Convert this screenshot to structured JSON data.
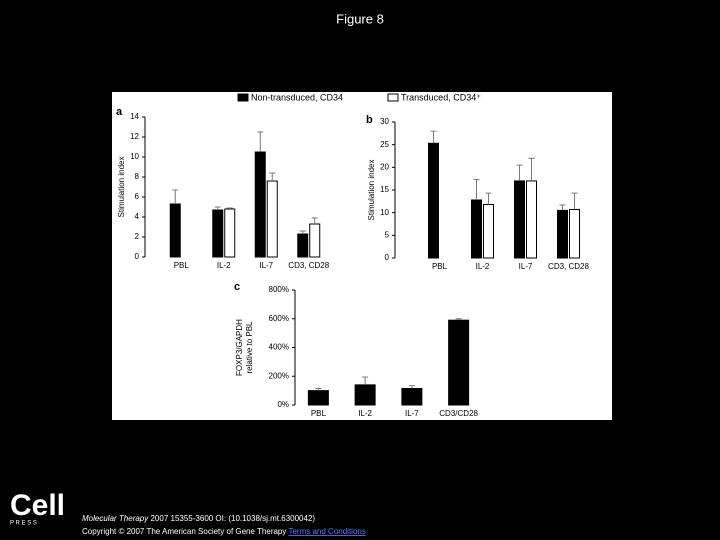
{
  "page": {
    "title": "Figure 8",
    "logo": "Cell",
    "logo_sub": "P R E S S",
    "citation_journal": "Molecular Therapy",
    "citation": "2007 15355-3600 OI: (10.1038/sj.mt.6300042)",
    "copyright": "Copyright © 2007 The American Society of Gene Therapy",
    "link": "Terms and Conditions"
  },
  "chart_data": [
    {
      "type": "bar",
      "panel": "a",
      "ylabel": "Stimulation index",
      "categories": [
        "PBL",
        "IL-2",
        "IL-7",
        "CD3, CD28"
      ],
      "series": [
        {
          "name": "Non-transduced, CD34",
          "color": "#000000",
          "values": [
            5.3,
            4.7,
            10.5,
            2.3
          ],
          "errors": [
            1.4,
            0.3,
            2.0,
            0.3
          ]
        },
        {
          "name": "Transduced, CD34⁺",
          "color": "#ffffff",
          "values": [
            null,
            4.8,
            7.6,
            3.3
          ],
          "errors": [
            null,
            0.1,
            0.8,
            0.6
          ]
        }
      ],
      "ylim": [
        0,
        14
      ],
      "yticks": [
        0,
        2,
        4,
        6,
        8,
        10,
        12,
        14
      ]
    },
    {
      "type": "bar",
      "panel": "b",
      "ylabel": "Stimulation index",
      "categories": [
        "PBL",
        "IL-2",
        "IL-7",
        "CD3, CD28"
      ],
      "series": [
        {
          "color": "#000000",
          "values": [
            25.3,
            12.8,
            17,
            10.5
          ],
          "errors": [
            2.7,
            4.5,
            3.5,
            1.2
          ]
        },
        {
          "color": "#ffffff",
          "values": [
            null,
            11.8,
            17,
            10.7
          ],
          "errors": [
            null,
            2.5,
            5,
            3.6
          ]
        }
      ],
      "ylim": [
        0,
        30
      ],
      "yticks": [
        0,
        5,
        10,
        15,
        20,
        25,
        30
      ]
    },
    {
      "type": "bar",
      "panel": "c",
      "ylabel": [
        "FOXP3/GAPDH",
        "relative to PBL"
      ],
      "categories": [
        "PBL",
        "IL-2",
        "IL-7",
        "CD3/CD28"
      ],
      "series": [
        {
          "color": "#000000",
          "values": [
            100,
            140,
            115,
            590
          ],
          "errors": [
            15,
            55,
            20,
            10
          ]
        }
      ],
      "ylim": [
        0,
        800
      ],
      "yticks": [
        {
          "value": 0,
          "label": "0%"
        },
        {
          "value": 200,
          "label": "200%"
        },
        {
          "value": 400,
          "label": "400%"
        },
        {
          "value": 600,
          "label": "600%"
        },
        {
          "value": 800,
          "label": "800%"
        }
      ]
    }
  ]
}
